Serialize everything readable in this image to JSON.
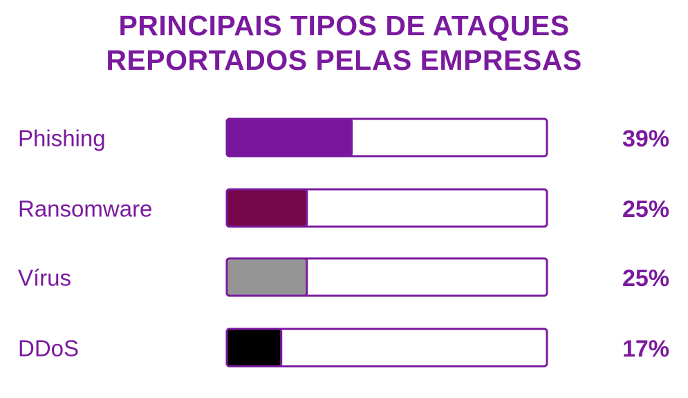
{
  "title_lines": [
    "PRINCIPAIS TIPOS DE ATAQUES",
    "REPORTADOS PELAS EMPRESAS"
  ],
  "colors": {
    "title": "#7a1a9e",
    "label": "#7a1a9e",
    "value": "#7a1a9e",
    "bar_outline": "#7a1a9e",
    "track": "#ffffff"
  },
  "chart_data": {
    "type": "bar",
    "orientation": "horizontal",
    "title": "PRINCIPAIS TIPOS DE ATAQUES REPORTADOS PELAS EMPRESAS",
    "categories": [
      "Phishing",
      "Ransomware",
      "Vírus",
      "DDoS"
    ],
    "values": [
      39,
      25,
      25,
      17
    ],
    "value_labels": [
      "39%",
      "25%",
      "25%",
      "17%"
    ],
    "bar_colors": [
      "#7a169e",
      "#74074a",
      "#959595",
      "#000000"
    ],
    "xlim": [
      0,
      100
    ],
    "unit": "%",
    "grid": false,
    "legend": "none"
  }
}
